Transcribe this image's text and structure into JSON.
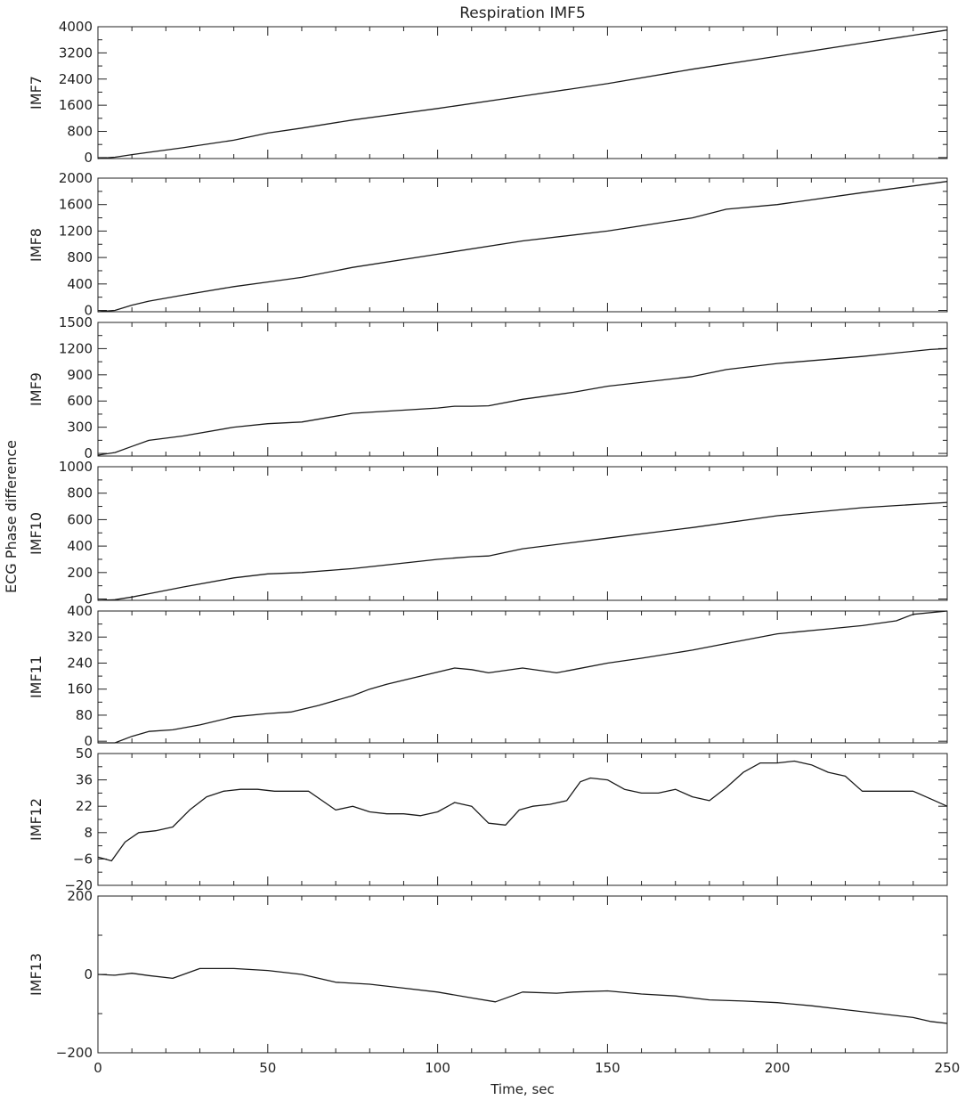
{
  "title": "Respiration IMF5",
  "y_common_label": "ECG Phase difference",
  "x_label": "Time, sec",
  "x_ticks": [
    0,
    50,
    100,
    150,
    200,
    250
  ],
  "x_range": [
    0,
    250
  ],
  "line_color": "#1a1a1a",
  "chart_data": [
    {
      "type": "line",
      "ylabel": "IMF7",
      "ylim": [
        -30,
        4000
      ],
      "yticks": [
        0,
        800,
        1600,
        2400,
        3200,
        4000
      ],
      "x": [
        0,
        5,
        10,
        15,
        25,
        40,
        50,
        60,
        75,
        100,
        125,
        150,
        175,
        200,
        225,
        250
      ],
      "y": [
        -30,
        10,
        90,
        160,
        300,
        530,
        750,
        900,
        1150,
        1500,
        1880,
        2260,
        2700,
        3100,
        3500,
        3900
      ]
    },
    {
      "type": "line",
      "ylabel": "IMF8",
      "ylim": [
        -20,
        2000
      ],
      "yticks": [
        0,
        400,
        800,
        1200,
        1600,
        2000
      ],
      "x": [
        0,
        5,
        10,
        15,
        25,
        40,
        50,
        60,
        75,
        100,
        125,
        150,
        175,
        185,
        200,
        225,
        250
      ],
      "y": [
        -20,
        0,
        80,
        140,
        230,
        360,
        430,
        500,
        650,
        850,
        1050,
        1200,
        1400,
        1530,
        1600,
        1780,
        1950
      ]
    },
    {
      "type": "line",
      "ylabel": "IMF9",
      "ylim": [
        -30,
        1500
      ],
      "yticks": [
        0,
        300,
        600,
        900,
        1200,
        1500
      ],
      "x": [
        0,
        5,
        10,
        15,
        25,
        40,
        50,
        60,
        75,
        100,
        105,
        110,
        115,
        125,
        140,
        150,
        175,
        185,
        200,
        225,
        245,
        250
      ],
      "y": [
        -20,
        10,
        80,
        150,
        200,
        300,
        340,
        360,
        460,
        520,
        540,
        540,
        545,
        620,
        700,
        770,
        880,
        960,
        1030,
        1110,
        1190,
        1200
      ]
    },
    {
      "type": "line",
      "ylabel": "IMF10",
      "ylim": [
        -10,
        1000
      ],
      "yticks": [
        0,
        200,
        400,
        600,
        800,
        1000
      ],
      "x": [
        0,
        5,
        10,
        15,
        25,
        40,
        50,
        60,
        75,
        100,
        110,
        115,
        125,
        150,
        175,
        200,
        225,
        250
      ],
      "y": [
        -10,
        -5,
        15,
        40,
        90,
        160,
        190,
        200,
        230,
        300,
        320,
        325,
        380,
        460,
        540,
        630,
        690,
        730
      ]
    },
    {
      "type": "line",
      "ylabel": "IMF11",
      "ylim": [
        -5,
        400
      ],
      "yticks": [
        0,
        80,
        160,
        240,
        320,
        400
      ],
      "x": [
        0,
        5,
        10,
        15,
        22,
        30,
        40,
        50,
        57,
        65,
        75,
        80,
        85,
        95,
        105,
        110,
        115,
        125,
        135,
        140,
        150,
        160,
        175,
        185,
        200,
        215,
        225,
        235,
        240,
        250
      ],
      "y": [
        -5,
        -5,
        15,
        30,
        35,
        50,
        75,
        85,
        90,
        110,
        140,
        160,
        175,
        200,
        225,
        220,
        210,
        225,
        210,
        220,
        240,
        255,
        280,
        300,
        330,
        345,
        355,
        370,
        390,
        400
      ]
    },
    {
      "type": "line",
      "ylabel": "IMF12",
      "ylim": [
        -20,
        50
      ],
      "yticks": [
        -20,
        -6,
        8,
        22,
        36,
        50
      ],
      "x": [
        0,
        4,
        8,
        12,
        17,
        22,
        27,
        32,
        37,
        42,
        47,
        52,
        57,
        62,
        66,
        70,
        75,
        80,
        85,
        90,
        95,
        100,
        105,
        110,
        115,
        120,
        124,
        128,
        133,
        138,
        142,
        145,
        150,
        155,
        160,
        165,
        170,
        175,
        180,
        185,
        190,
        195,
        200,
        205,
        210,
        215,
        220,
        225,
        230,
        235,
        240,
        245,
        250
      ],
      "y": [
        -5,
        -7,
        3,
        8,
        9,
        11,
        20,
        27,
        30,
        31,
        31,
        30,
        30,
        30,
        25,
        20,
        22,
        19,
        18,
        18,
        17,
        19,
        24,
        22,
        13,
        12,
        20,
        22,
        23,
        25,
        35,
        37,
        36,
        31,
        29,
        29,
        31,
        27,
        25,
        32,
        40,
        45,
        45,
        46,
        44,
        40,
        38,
        30,
        30,
        30,
        30,
        26,
        22
      ]
    },
    {
      "type": "line",
      "ylabel": "IMF13",
      "ylim": [
        -200,
        200
      ],
      "yticks": [
        -200,
        0,
        200
      ],
      "x": [
        0,
        5,
        10,
        15,
        22,
        30,
        40,
        50,
        60,
        70,
        80,
        90,
        100,
        110,
        117,
        125,
        135,
        140,
        150,
        160,
        170,
        180,
        190,
        200,
        210,
        220,
        230,
        240,
        245,
        250
      ],
      "y": [
        0,
        -2,
        3,
        -3,
        -10,
        15,
        15,
        10,
        0,
        -20,
        -25,
        -35,
        -45,
        -60,
        -70,
        -45,
        -48,
        -45,
        -42,
        -50,
        -55,
        -65,
        -68,
        -72,
        -80,
        -90,
        -100,
        -110,
        -120,
        -125
      ]
    }
  ]
}
